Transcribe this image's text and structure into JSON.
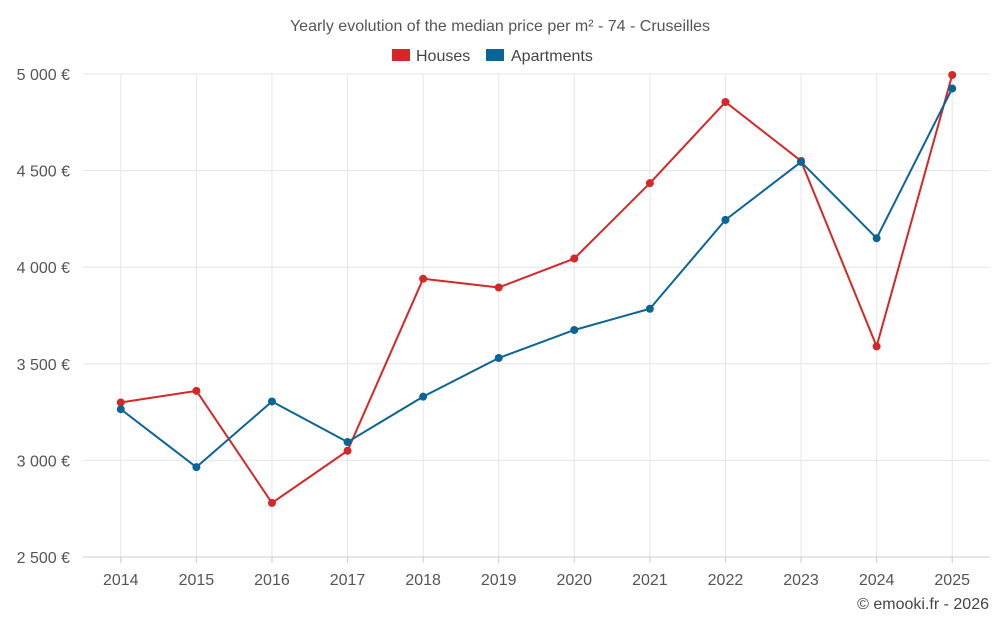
{
  "chart_data": {
    "type": "line",
    "title": "Yearly evolution of the median price per m² - 74 - Cruseilles",
    "categories": [
      "2014",
      "2015",
      "2016",
      "2017",
      "2018",
      "2019",
      "2020",
      "2021",
      "2022",
      "2023",
      "2024",
      "2025"
    ],
    "series": [
      {
        "name": "Houses",
        "color": "#d62728",
        "values": [
          3300,
          3360,
          2780,
          3050,
          3940,
          3895,
          4045,
          4435,
          4855,
          4550,
          3590,
          4995
        ]
      },
      {
        "name": "Apartments",
        "color": "#0b6496",
        "values": [
          3265,
          2965,
          3305,
          3095,
          3330,
          3530,
          3675,
          3785,
          4245,
          4545,
          4150,
          4925
        ]
      }
    ],
    "y_ticks": [
      2500,
      3000,
      3500,
      4000,
      4500,
      5000
    ],
    "y_tick_labels": [
      "2 500 €",
      "3 000 €",
      "3 500 €",
      "4 000 €",
      "4 500 €",
      "5 000 €"
    ],
    "ylim": [
      2500,
      5000
    ],
    "xlabel": "",
    "ylabel": "",
    "grid": true,
    "legend_position": "top-center",
    "credit": "© emooki.fr - 2026"
  }
}
